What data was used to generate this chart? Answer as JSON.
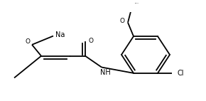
{
  "bg": "#ffffff",
  "lc": "#000000",
  "lw": 1.3,
  "fs": 7.0,
  "figsize": [
    2.9,
    1.42
  ],
  "dpi": 100,
  "xlim": [
    0,
    290
  ],
  "ylim": [
    0,
    142
  ]
}
